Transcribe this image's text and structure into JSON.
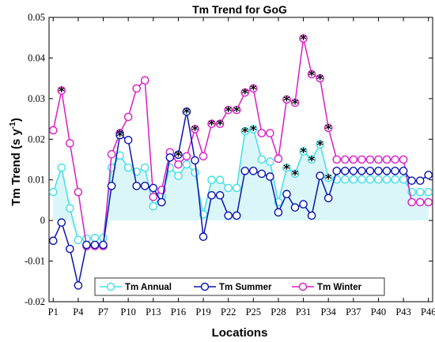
{
  "chart_data": {
    "type": "line",
    "title": "Tm Trend for GoG",
    "xlabel": "Locations",
    "ylabel": "Tm Trend (s y",
    "ylabel_sup": "-1",
    "ylabel_close": ")",
    "ylim": [
      -0.02,
      0.05
    ],
    "yticks": [
      -0.02,
      -0.01,
      0,
      0.01,
      0.02,
      0.03,
      0.04,
      0.05
    ],
    "ytick_labels": [
      "-0.02",
      "-0.01",
      "0",
      "0.01",
      "0.02",
      "0.03",
      "0.04",
      "0.05"
    ],
    "xlim": [
      0.5,
      46.5
    ],
    "xticks": [
      1,
      4,
      7,
      10,
      13,
      16,
      19,
      22,
      25,
      28,
      31,
      34,
      37,
      40,
      43,
      46
    ],
    "xtick_labels": [
      "P1",
      "P4",
      "P7",
      "P10",
      "P13",
      "P16",
      "P19",
      "P22",
      "P25",
      "P28",
      "P31",
      "P34",
      "P37",
      "P40",
      "P43",
      "P46"
    ],
    "x": [
      1,
      2,
      3,
      4,
      5,
      6,
      7,
      8,
      9,
      10,
      11,
      12,
      13,
      14,
      15,
      16,
      17,
      18,
      19,
      20,
      21,
      22,
      23,
      24,
      25,
      26,
      27,
      28,
      29,
      30,
      31,
      32,
      33,
      34,
      35,
      36,
      37,
      38,
      39,
      40,
      41,
      42,
      43,
      44,
      45,
      46
    ],
    "grid": false,
    "legend_position": "bottom-center",
    "series": [
      {
        "name": "Tm Annual",
        "color": "#3fe0e6",
        "band_color": "#bdeef2",
        "values": [
          0.007,
          0.013,
          0.003,
          -0.0048,
          -0.0045,
          -0.0043,
          -0.0043,
          0.013,
          0.016,
          0.013,
          0.012,
          0.013,
          0.0035,
          0.006,
          0.013,
          0.011,
          0.0138,
          0.0118,
          0.0015,
          0.01,
          0.01,
          0.008,
          0.008,
          0.022,
          0.0225,
          0.015,
          0.0145,
          0.0045,
          0.013,
          0.0115,
          0.017,
          0.015,
          0.0188,
          0.0105,
          0.0101,
          0.0101,
          0.0101,
          0.0101,
          0.0101,
          0.0101,
          0.0101,
          0.0101,
          0.0101,
          0.007,
          0.007,
          0.007
        ],
        "significant": [
          false,
          false,
          false,
          false,
          false,
          false,
          false,
          false,
          false,
          false,
          false,
          false,
          false,
          false,
          false,
          false,
          false,
          false,
          false,
          false,
          false,
          false,
          false,
          true,
          true,
          false,
          false,
          false,
          true,
          true,
          true,
          true,
          true,
          true,
          false,
          false,
          false,
          false,
          false,
          false,
          false,
          false,
          false,
          false,
          false,
          false
        ]
      },
      {
        "name": "Tm Summer",
        "color": "#0a14b0",
        "values": [
          -0.005,
          -0.0005,
          -0.007,
          -0.016,
          -0.006,
          -0.006,
          -0.006,
          0.0085,
          0.021,
          0.0198,
          0.0085,
          0.0085,
          0.008,
          0.0045,
          0.0155,
          0.0162,
          0.0268,
          0.0148,
          -0.004,
          0.0062,
          0.0062,
          0.0012,
          0.0012,
          0.0122,
          0.0122,
          0.0115,
          0.0108,
          0.002,
          0.0065,
          0.0032,
          0.004,
          0.0012,
          0.011,
          0.0055,
          0.0122,
          0.0122,
          0.0122,
          0.0122,
          0.0122,
          0.0122,
          0.0122,
          0.0122,
          0.0122,
          0.0098,
          0.0098,
          0.0112
        ],
        "significant": [
          false,
          false,
          false,
          false,
          false,
          false,
          false,
          false,
          true,
          false,
          false,
          false,
          false,
          false,
          false,
          true,
          true,
          false,
          false,
          false,
          false,
          false,
          false,
          false,
          false,
          false,
          false,
          false,
          false,
          false,
          false,
          false,
          false,
          false,
          false,
          false,
          false,
          false,
          false,
          false,
          false,
          false,
          false,
          false,
          false,
          false
        ]
      },
      {
        "name": "Tm Winter",
        "color": "#d81cc7",
        "band_color": "#f2cfee",
        "values": [
          0.0222,
          0.032,
          0.019,
          0.007,
          -0.0063,
          -0.0063,
          -0.0063,
          0.0163,
          0.0215,
          0.0255,
          0.0325,
          0.0345,
          0.0058,
          0.0075,
          0.0168,
          0.0138,
          0.0158,
          0.0225,
          0.0158,
          0.0238,
          0.0238,
          0.0272,
          0.0272,
          0.0315,
          0.0325,
          0.0215,
          0.0215,
          0.0152,
          0.0298,
          0.029,
          0.0448,
          0.036,
          0.035,
          0.0228,
          0.015,
          0.015,
          0.015,
          0.015,
          0.015,
          0.015,
          0.015,
          0.015,
          0.015,
          0.0045,
          0.0045,
          0.0045
        ],
        "significant": [
          false,
          true,
          false,
          false,
          false,
          false,
          false,
          false,
          true,
          false,
          false,
          false,
          false,
          false,
          false,
          false,
          false,
          true,
          false,
          true,
          true,
          true,
          true,
          true,
          true,
          false,
          false,
          false,
          true,
          true,
          true,
          true,
          true,
          true,
          false,
          false,
          false,
          false,
          false,
          false,
          false,
          false,
          false,
          false,
          false,
          false
        ]
      }
    ]
  }
}
